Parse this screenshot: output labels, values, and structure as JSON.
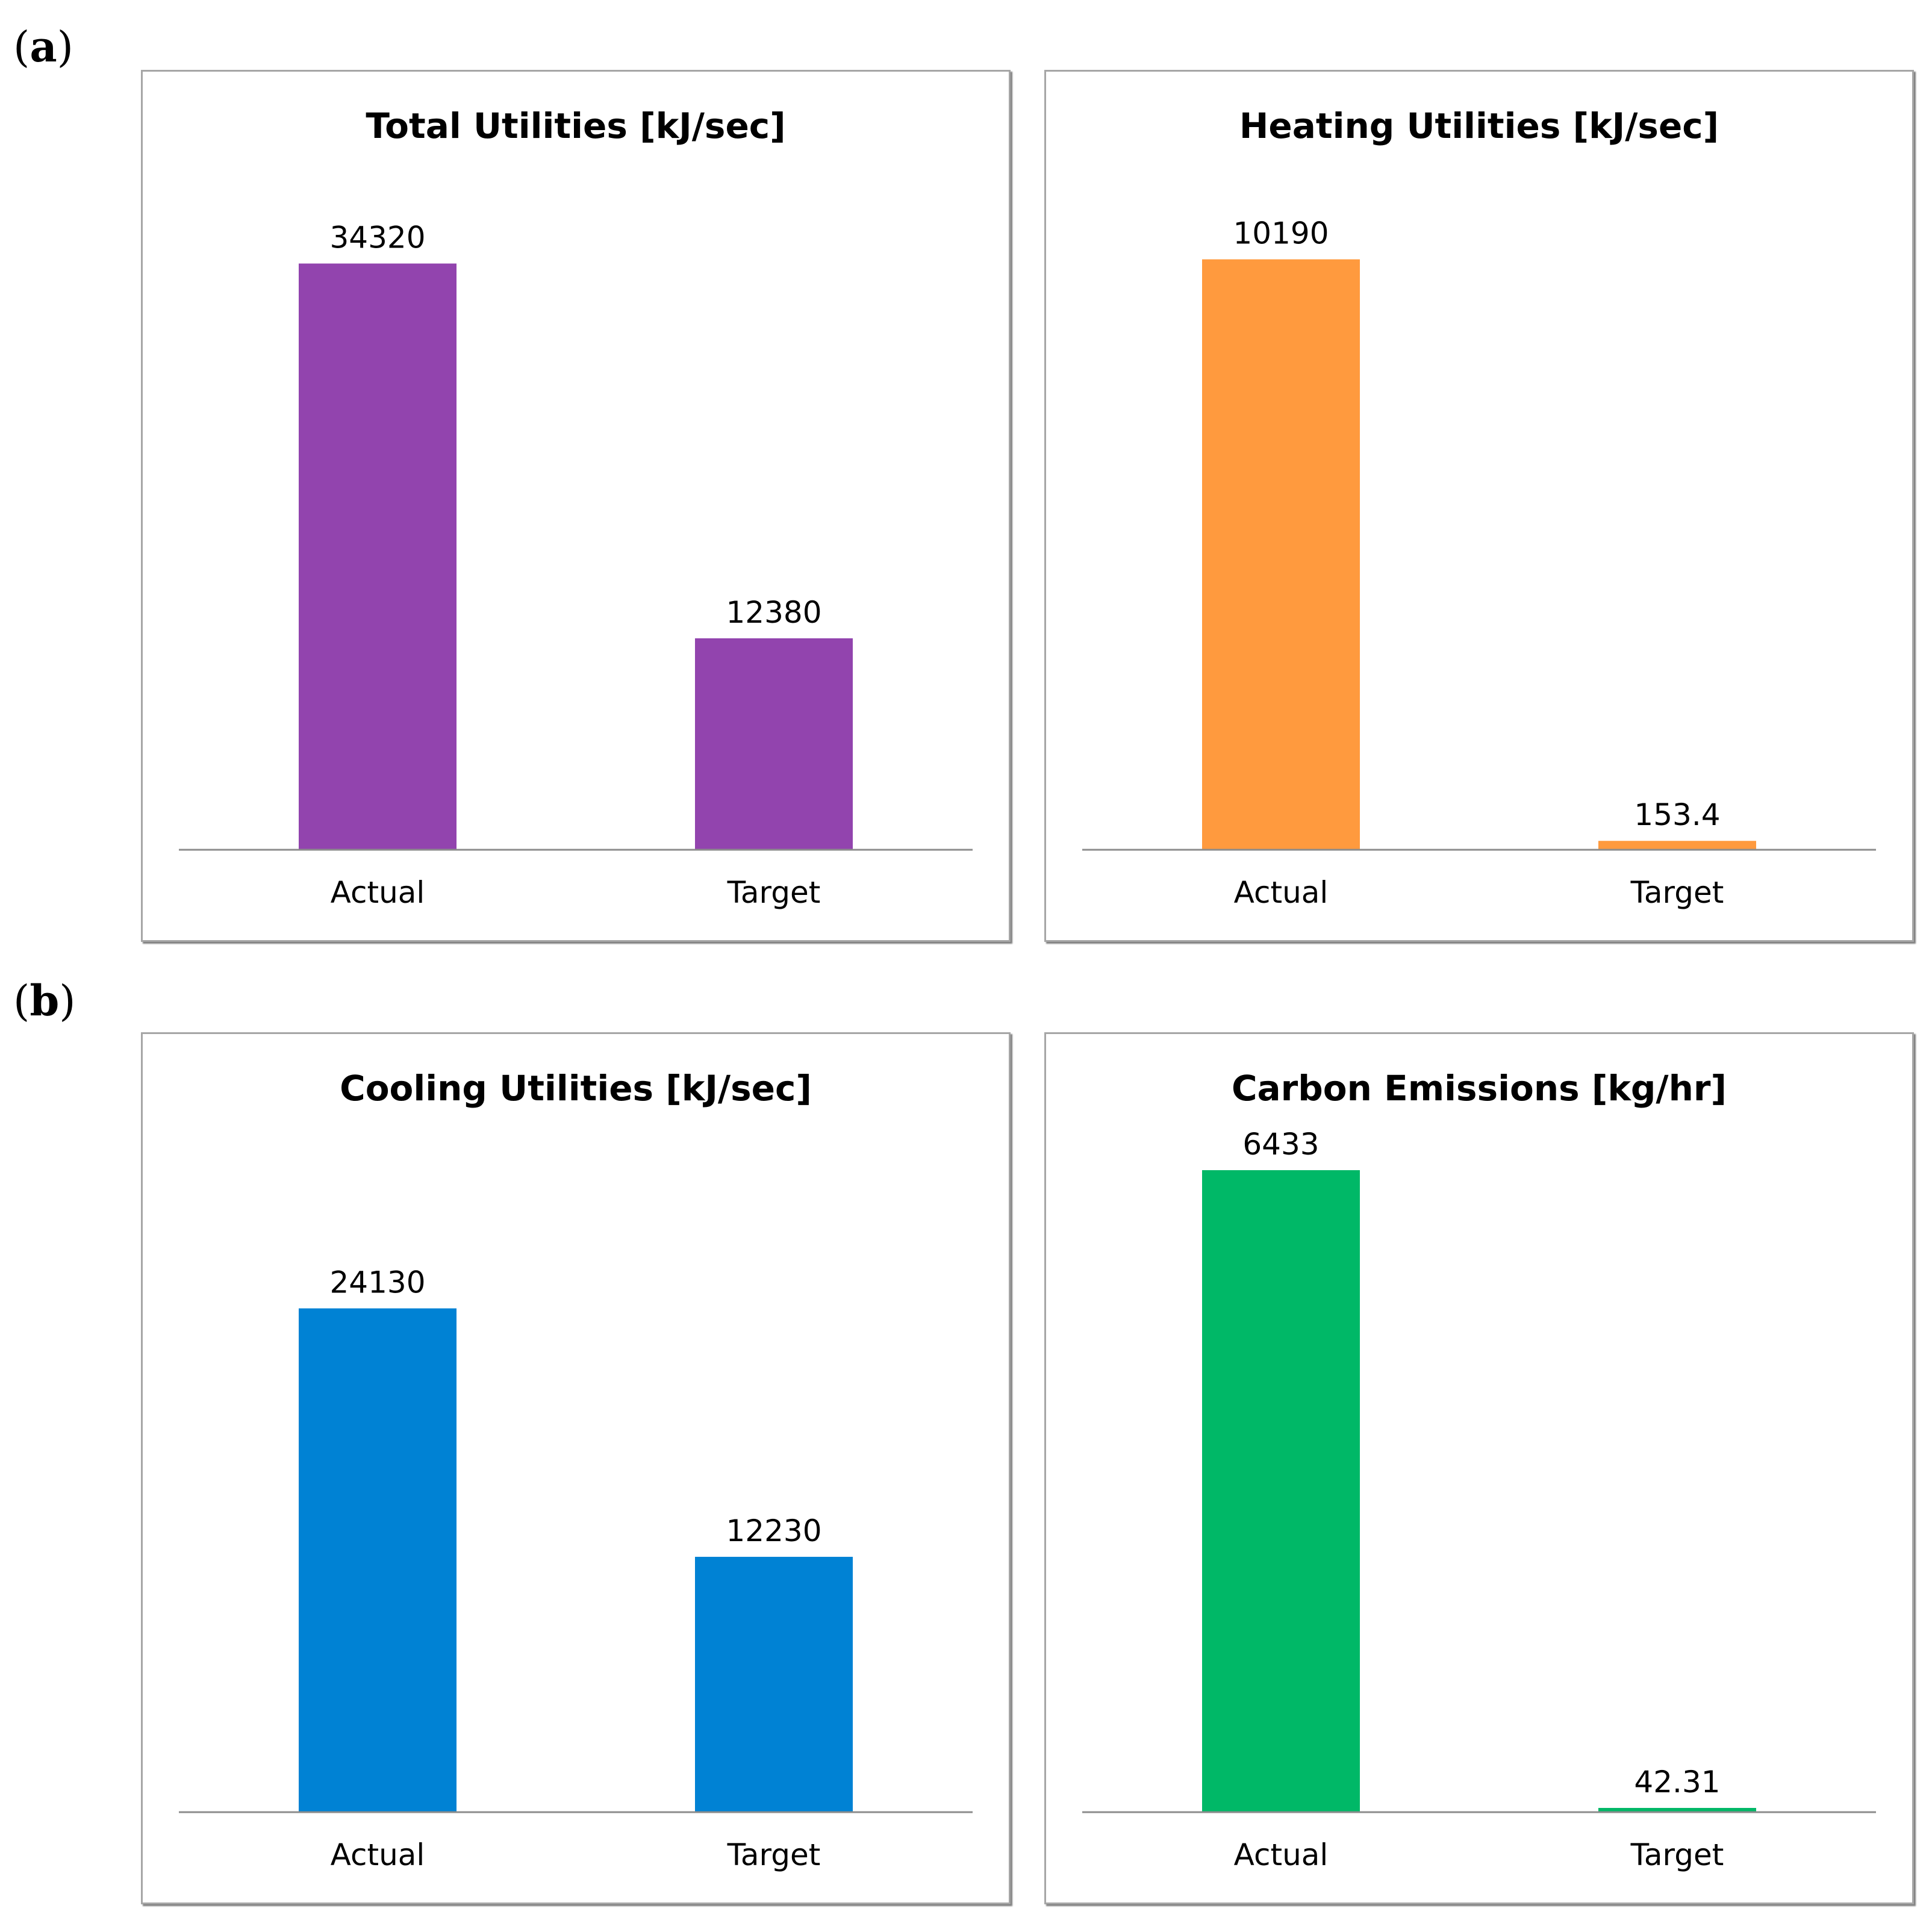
{
  "panel_labels": {
    "a": "a",
    "b": "b"
  },
  "chart_data": [
    {
      "type": "bar",
      "title": "Total Utilities [kJ/sec]",
      "categories": [
        "Actual",
        "Target"
      ],
      "values": [
        34320,
        12380
      ],
      "data_labels": [
        "34320",
        "12380"
      ],
      "color": "#9244AE",
      "ylim": [
        0,
        38500
      ]
    },
    {
      "type": "bar",
      "title": "Heating Utilities [kJ/sec]",
      "categories": [
        "Actual",
        "Target"
      ],
      "values": [
        10190,
        153.4
      ],
      "data_labels": [
        "10190",
        "153.4"
      ],
      "color": "#FF9A3E",
      "ylim": [
        0,
        11350
      ]
    },
    {
      "type": "bar",
      "title": "Cooling Utilities [kJ/sec]",
      "categories": [
        "Actual",
        "Target"
      ],
      "values": [
        24130,
        12230
      ],
      "data_labels": [
        "24130",
        "12230"
      ],
      "color": "#0082D4",
      "ylim": [
        0,
        31500
      ]
    },
    {
      "type": "bar",
      "title": "Carbon Emissions [kg/hr]",
      "categories": [
        "Actual",
        "Target"
      ],
      "values": [
        6433,
        42.31
      ],
      "data_labels": [
        "6433",
        "42.31"
      ],
      "color": "#00B867",
      "ylim": [
        0,
        6590
      ]
    }
  ]
}
